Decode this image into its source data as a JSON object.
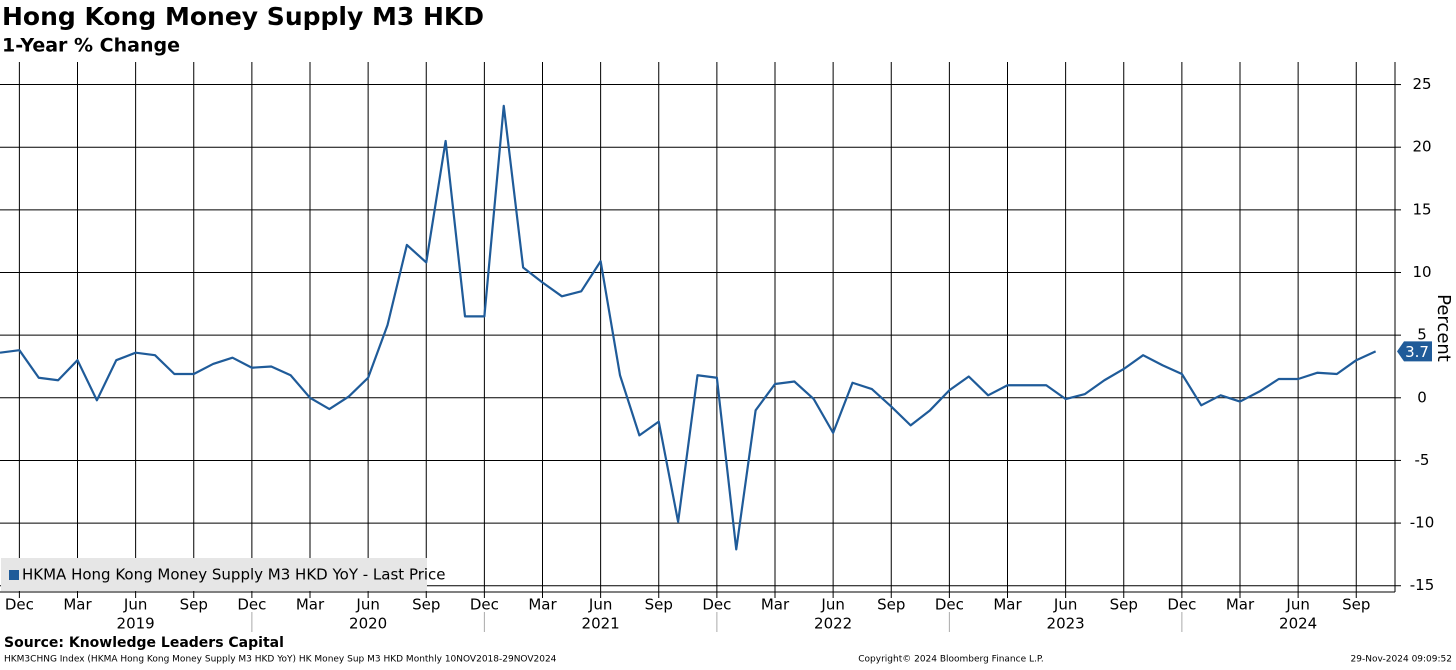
{
  "chart_data": {
    "type": "line",
    "title": "Hong Kong Money Supply M3 HKD",
    "subtitle": "1-Year % Change",
    "y_label": "Percent",
    "x": [
      "2018-11",
      "2018-12",
      "2019-01",
      "2019-02",
      "2019-03",
      "2019-04",
      "2019-05",
      "2019-06",
      "2019-07",
      "2019-08",
      "2019-09",
      "2019-10",
      "2019-11",
      "2019-12",
      "2020-01",
      "2020-02",
      "2020-03",
      "2020-04",
      "2020-05",
      "2020-06",
      "2020-07",
      "2020-08",
      "2020-09",
      "2020-10",
      "2020-11",
      "2020-12",
      "2021-01",
      "2021-02",
      "2021-03",
      "2021-04",
      "2021-05",
      "2021-06",
      "2021-07",
      "2021-08",
      "2021-09",
      "2021-10",
      "2021-11",
      "2021-12",
      "2022-01",
      "2022-02",
      "2022-03",
      "2022-04",
      "2022-05",
      "2022-06",
      "2022-07",
      "2022-08",
      "2022-09",
      "2022-10",
      "2022-11",
      "2022-12",
      "2023-01",
      "2023-02",
      "2023-03",
      "2023-04",
      "2023-05",
      "2023-06",
      "2023-07",
      "2023-08",
      "2023-09",
      "2023-10",
      "2023-11",
      "2023-12",
      "2024-01",
      "2024-02",
      "2024-03",
      "2024-04",
      "2024-05",
      "2024-06",
      "2024-07",
      "2024-08",
      "2024-09",
      "2024-10"
    ],
    "series": [
      {
        "name": "HKMA Hong Kong Money Supply M3 HKD YoY - Last Price",
        "color": "#1f5b99",
        "values": [
          3.6,
          3.8,
          1.6,
          1.4,
          3.0,
          -0.2,
          3.0,
          3.6,
          3.4,
          1.9,
          1.9,
          2.7,
          3.2,
          2.4,
          2.5,
          1.8,
          0.0,
          -0.9,
          0.1,
          1.6,
          5.8,
          12.2,
          10.8,
          20.5,
          6.5,
          6.5,
          23.3,
          10.4,
          9.2,
          8.1,
          8.5,
          10.9,
          1.8,
          -3.0,
          -1.9,
          -9.9,
          1.8,
          1.6,
          -12.1,
          -1.0,
          1.1,
          1.3,
          -0.1,
          -2.8,
          1.2,
          0.7,
          -0.7,
          -2.2,
          -1.0,
          0.6,
          1.7,
          0.2,
          1.0,
          1.0,
          1.0,
          -0.1,
          0.3,
          1.4,
          2.3,
          3.4,
          2.6,
          1.9,
          -0.6,
          0.2,
          -0.3,
          0.5,
          1.5,
          1.5,
          2.0,
          1.9,
          3.0,
          3.7
        ]
      }
    ],
    "xlim": [
      "2018-11",
      "2024-11"
    ],
    "ylim": [
      -15.5,
      26.8
    ],
    "yticks": [
      25,
      20,
      15,
      10,
      5,
      0,
      -5,
      -10,
      -15
    ],
    "xticks": [
      {
        "value": "2018-12",
        "label": "Dec"
      },
      {
        "value": "2019-03",
        "label": "Mar"
      },
      {
        "value": "2019-06",
        "label": "Jun"
      },
      {
        "value": "2019-09",
        "label": "Sep"
      },
      {
        "value": "2019-12",
        "label": "Dec"
      },
      {
        "value": "2020-03",
        "label": "Mar"
      },
      {
        "value": "2020-06",
        "label": "Jun"
      },
      {
        "value": "2020-09",
        "label": "Sep"
      },
      {
        "value": "2020-12",
        "label": "Dec"
      },
      {
        "value": "2021-03",
        "label": "Mar"
      },
      {
        "value": "2021-06",
        "label": "Jun"
      },
      {
        "value": "2021-09",
        "label": "Sep"
      },
      {
        "value": "2021-12",
        "label": "Dec"
      },
      {
        "value": "2022-03",
        "label": "Mar"
      },
      {
        "value": "2022-06",
        "label": "Jun"
      },
      {
        "value": "2022-09",
        "label": "Sep"
      },
      {
        "value": "2022-12",
        "label": "Dec"
      },
      {
        "value": "2023-03",
        "label": "Mar"
      },
      {
        "value": "2023-06",
        "label": "Jun"
      },
      {
        "value": "2023-09",
        "label": "Sep"
      },
      {
        "value": "2023-12",
        "label": "Dec"
      },
      {
        "value": "2024-03",
        "label": "Mar"
      },
      {
        "value": "2024-06",
        "label": "Jun"
      },
      {
        "value": "2024-09",
        "label": "Sep"
      }
    ],
    "year_ticks": [
      {
        "value": "2019-06",
        "label": "2019"
      },
      {
        "value": "2020-06",
        "label": "2020"
      },
      {
        "value": "2021-06",
        "label": "2021"
      },
      {
        "value": "2022-06",
        "label": "2022"
      },
      {
        "value": "2023-06",
        "label": "2023"
      },
      {
        "value": "2024-06",
        "label": "2024"
      }
    ],
    "grid": true,
    "legend": "lower left",
    "source": "Source: Knowledge Leaders Capital",
    "footer_left": "HKM3CHNG Index (HKMA Hong Kong Money Supply M3 HKD YoY) HK Money Sup M3 HKD  Monthly 10NOV2018-29NOV2024",
    "footer_center": "Copyright© 2024 Bloomberg Finance L.P.",
    "footer_right": "29-Nov-2024 09:09:52"
  }
}
